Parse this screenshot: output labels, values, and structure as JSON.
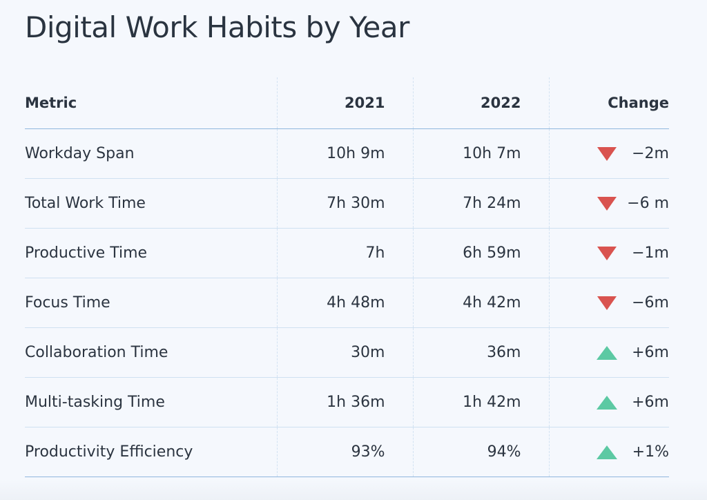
{
  "title": "Digital Work Habits by Year",
  "table": {
    "headers": {
      "metric": "Metric",
      "year1": "2021",
      "year2": "2022",
      "change": "Change"
    },
    "rows": [
      {
        "metric": "Workday Span",
        "year1": "10h 9m",
        "year2": "10h 7m",
        "change": "−2m",
        "direction": "down"
      },
      {
        "metric": "Total Work Time",
        "year1": "7h 30m",
        "year2": "7h 24m",
        "change": "−6 m",
        "direction": "down"
      },
      {
        "metric": "Productive Time",
        "year1": "7h",
        "year2": "6h 59m",
        "change": "−1m",
        "direction": "down"
      },
      {
        "metric": "Focus Time",
        "year1": "4h 48m",
        "year2": "4h 42m",
        "change": "−6m",
        "direction": "down"
      },
      {
        "metric": "Collaboration Time",
        "year1": "30m",
        "year2": "36m",
        "change": "+6m",
        "direction": "up"
      },
      {
        "metric": "Multi-tasking Time",
        "year1": "1h 36m",
        "year2": "1h 42m",
        "change": "+6m",
        "direction": "up"
      },
      {
        "metric": "Productivity Efficiency",
        "year1": "93%",
        "year2": "94%",
        "change": "+1%",
        "direction": "up"
      }
    ]
  },
  "colors": {
    "down": "#d9534f",
    "up": "#5cc9a3",
    "rule": "#8fb6de"
  },
  "icons": {
    "down": "triangle-down-icon",
    "up": "triangle-up-icon"
  }
}
